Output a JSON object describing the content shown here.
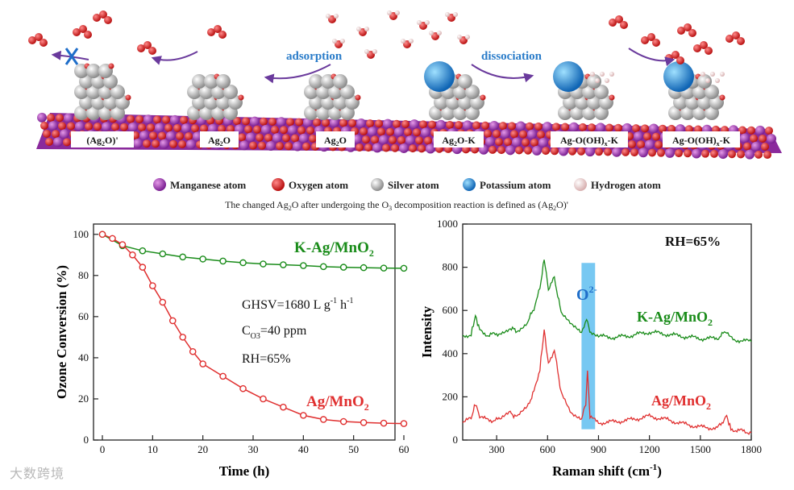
{
  "schematic": {
    "adsorption_label": "adsorption",
    "dissociation_label": "dissociation",
    "badges": [
      {
        "base": "(Ag",
        "sub": "2",
        "tail": "O)'"
      },
      {
        "base": "Ag",
        "sub": "2",
        "tail": "O"
      },
      {
        "base": "Ag",
        "sub": "2",
        "tail": "O"
      },
      {
        "base": "Ag",
        "sub": "2",
        "tail": "O-K"
      },
      {
        "base": "Ag-O(OH)",
        "sub": "x",
        "tail": "-K"
      },
      {
        "base": "Ag-O(OH)",
        "sub": "x",
        "tail": "-K"
      }
    ],
    "legend": [
      {
        "label": "Manganese atom",
        "color": "#9b2fb0"
      },
      {
        "label": "Oxygen atom",
        "color": "#dd2222"
      },
      {
        "label": "Silver atom",
        "color": "#b5b5b5"
      },
      {
        "label": "Potassium atom",
        "color": "#2a8fd8"
      },
      {
        "label": "Hydrogen atom",
        "color": "#f2d8d8"
      }
    ],
    "caption": {
      "p1": "The changed Ag",
      "sub": "2",
      "p2": "O after undergoing the O",
      "sub2": "3",
      "p3": " decomposition reaction is defined as (Ag",
      "sub3": "2",
      "p4": "O)'"
    }
  },
  "chart_data": [
    {
      "type": "line",
      "xlabel": "Time (h)",
      "ylabel": "Ozone Conversion (%)",
      "xlim": [
        0,
        60
      ],
      "ylim": [
        0,
        105
      ],
      "xticks": [
        0,
        10,
        20,
        30,
        40,
        50,
        60
      ],
      "yticks": [
        0,
        20,
        40,
        60,
        80,
        100
      ],
      "series": [
        {
          "name": "K-Ag/MnO2",
          "label_main": "K-Ag/MnO",
          "label_sub": "2",
          "color": "#1a8c1a",
          "x": [
            0,
            4,
            8,
            12,
            16,
            20,
            24,
            28,
            32,
            36,
            40,
            44,
            48,
            52,
            56,
            60
          ],
          "y": [
            100,
            94.5,
            92,
            90.5,
            89,
            88,
            87,
            86.2,
            85.6,
            85.2,
            84.8,
            84.3,
            84,
            83.8,
            83.6,
            83.5
          ]
        },
        {
          "name": "Ag/MnO2",
          "label_main": "Ag/MnO",
          "label_sub": "2",
          "color": "#e03030",
          "x": [
            0,
            2,
            4,
            6,
            8,
            10,
            12,
            14,
            16,
            18,
            20,
            24,
            28,
            32,
            36,
            40,
            44,
            48,
            52,
            56,
            60
          ],
          "y": [
            100,
            98,
            95,
            90,
            84,
            75,
            67,
            58,
            50,
            43,
            37,
            31,
            25,
            20,
            16,
            12,
            10,
            9,
            8.5,
            8.2,
            8
          ]
        }
      ],
      "annotations": {
        "ghsv": "GHSV=1680 L g",
        "ghsv_sup1": "-1",
        "ghsv_mid": " h",
        "ghsv_sup2": "-1",
        "conc": "C",
        "conc_sub": "O3",
        "conc_tail": "=40 ppm",
        "rh": "RH=65%"
      }
    },
    {
      "type": "line",
      "xlabel": "Raman shift (cm",
      "xlabel_sup": "-1",
      "xlabel_tail": ")",
      "ylabel": "Intensity",
      "xlim": [
        100,
        1800
      ],
      "ylim": [
        0,
        1000
      ],
      "xticks": [
        300,
        600,
        900,
        1200,
        1500,
        1800
      ],
      "yticks": [
        0,
        200,
        400,
        600,
        800,
        1000
      ],
      "highlight": {
        "label": "O",
        "label_sup": "2-",
        "x_from": 800,
        "x_to": 880,
        "color": "#5fbef0"
      },
      "rh": "RH=65%",
      "series": [
        {
          "name": "K-Ag/MnO2",
          "label_main": "K-Ag/MnO",
          "label_sub": "2",
          "color": "#1a8c1a",
          "x": [
            100,
            150,
            175,
            200,
            250,
            320,
            380,
            420,
            480,
            520,
            555,
            580,
            605,
            640,
            680,
            740,
            800,
            830,
            855,
            900,
            1000,
            1100,
            1200,
            1300,
            1400,
            1500,
            1600,
            1655,
            1700,
            1800
          ],
          "y": [
            480,
            490,
            575,
            510,
            485,
            495,
            520,
            505,
            545,
            610,
            700,
            840,
            700,
            750,
            590,
            530,
            495,
            560,
            490,
            480,
            475,
            485,
            500,
            490,
            480,
            470,
            470,
            505,
            465,
            455
          ]
        },
        {
          "name": "Ag/MnO2",
          "label_main": "Ag/MnO",
          "label_sub": "2",
          "color": "#e03030",
          "x": [
            100,
            150,
            175,
            200,
            250,
            320,
            380,
            420,
            480,
            520,
            555,
            580,
            605,
            640,
            680,
            740,
            800,
            825,
            835,
            850,
            900,
            1000,
            1100,
            1200,
            1300,
            1400,
            1500,
            1600,
            1655,
            1680,
            1800
          ],
          "y": [
            80,
            100,
            170,
            110,
            90,
            95,
            125,
            105,
            150,
            225,
            330,
            510,
            350,
            420,
            220,
            130,
            100,
            170,
            315,
            105,
            80,
            85,
            95,
            110,
            95,
            75,
            60,
            55,
            110,
            50,
            35
          ]
        }
      ]
    }
  ],
  "watermark": "大数跨境"
}
